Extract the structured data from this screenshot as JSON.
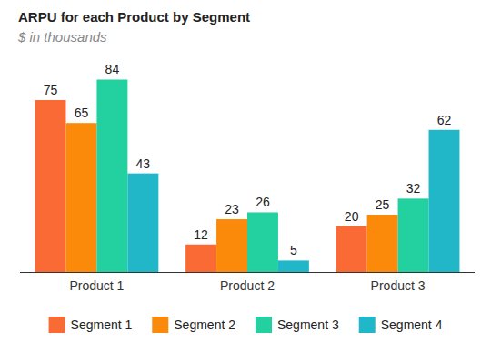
{
  "chart_data": {
    "type": "bar",
    "title": "ARPU for each Product by Segment",
    "subtitle": "$ in thousands",
    "categories": [
      "Product 1",
      "Product 2",
      "Product 3"
    ],
    "series": [
      {
        "name": "Segment 1",
        "color": "#fa6a35",
        "values": [
          75,
          12,
          20
        ]
      },
      {
        "name": "Segment 2",
        "color": "#fb8a0a",
        "values": [
          65,
          23,
          25
        ]
      },
      {
        "name": "Segment 3",
        "color": "#22d0a0",
        "values": [
          84,
          26,
          32
        ]
      },
      {
        "name": "Segment 4",
        "color": "#22b6c9",
        "values": [
          43,
          5,
          62
        ]
      }
    ],
    "ylim": [
      0,
      84
    ],
    "grid": false,
    "data_labels": true,
    "tick_labels": "x",
    "legend": "bottom"
  }
}
